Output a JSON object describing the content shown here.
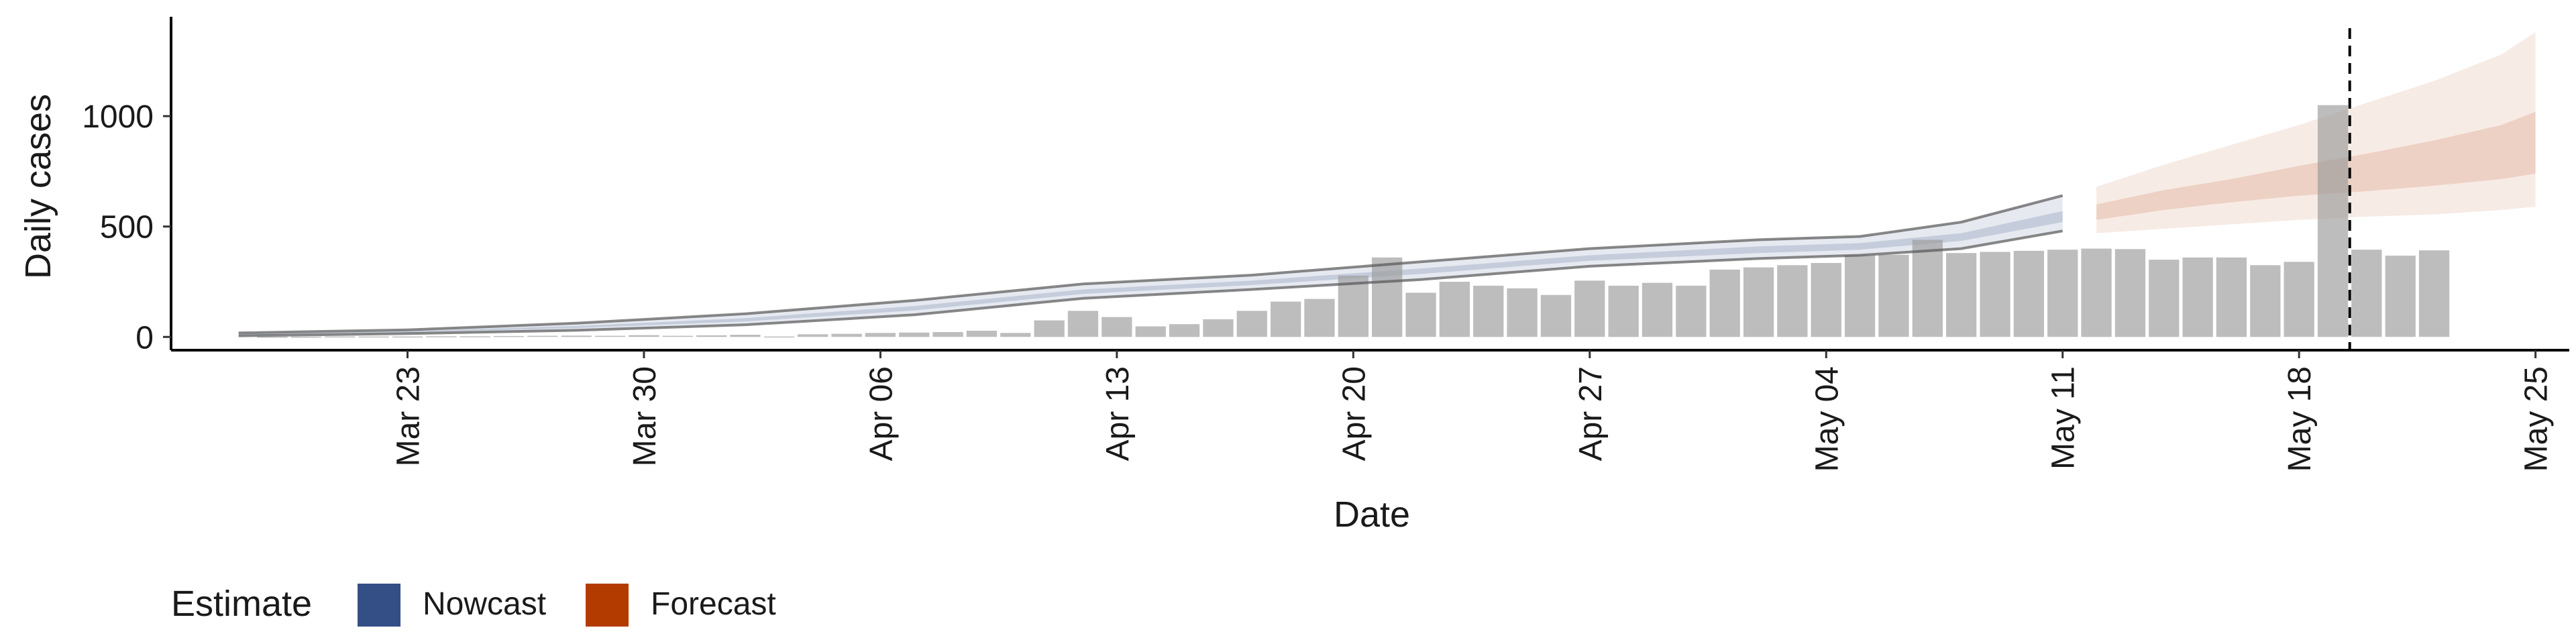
{
  "chart_data": {
    "type": "bar",
    "xlabel": "Date",
    "ylabel": "Daily cases",
    "ylim": [
      -60,
      1450
    ],
    "yticks": [
      0,
      500,
      1000
    ],
    "xlim": [
      "2020-03-16",
      "2020-05-26"
    ],
    "xticks": [
      {
        "date": "2020-03-23",
        "label": "Mar 23"
      },
      {
        "date": "2020-03-30",
        "label": "Mar 30"
      },
      {
        "date": "2020-04-06",
        "label": "Apr 06"
      },
      {
        "date": "2020-04-13",
        "label": "Apr 13"
      },
      {
        "date": "2020-04-20",
        "label": "Apr 20"
      },
      {
        "date": "2020-04-27",
        "label": "Apr 27"
      },
      {
        "date": "2020-05-04",
        "label": "May 04"
      },
      {
        "date": "2020-05-11",
        "label": "May 11"
      },
      {
        "date": "2020-05-18",
        "label": "May 18"
      },
      {
        "date": "2020-05-25",
        "label": "May 25"
      }
    ],
    "bar_start": "2020-03-19",
    "bars": [
      1,
      1,
      2,
      2,
      2,
      3,
      3,
      4,
      5,
      6,
      5,
      8,
      5,
      7,
      10,
      2,
      12,
      14,
      18,
      20,
      22,
      28,
      18,
      75,
      118,
      90,
      48,
      58,
      80,
      118,
      160,
      172,
      278,
      360,
      200,
      250,
      232,
      220,
      190,
      255,
      232,
      245,
      232,
      305,
      315,
      325,
      335,
      370,
      372,
      440,
      380,
      385,
      390,
      395,
      400,
      398,
      350,
      360,
      360,
      325,
      340,
      1050,
      395,
      368,
      392
    ],
    "report_date": "2020-05-19",
    "legend_title": "Estimate",
    "series": [
      {
        "name": "Nowcast",
        "color": "#344e86"
      },
      {
        "name": "Forecast",
        "color": "#b33b00"
      }
    ],
    "nowcast": {
      "dates": [
        "2020-03-18",
        "2020-03-23",
        "2020-03-28",
        "2020-04-02",
        "2020-04-07",
        "2020-04-12",
        "2020-04-17",
        "2020-04-22",
        "2020-04-27",
        "2020-05-02",
        "2020-05-05",
        "2020-05-08",
        "2020-05-11"
      ],
      "lower90": [
        5,
        15,
        30,
        55,
        100,
        175,
        215,
        260,
        320,
        355,
        370,
        400,
        480
      ],
      "lower50": [
        8,
        20,
        40,
        70,
        120,
        195,
        235,
        285,
        345,
        380,
        395,
        435,
        520
      ],
      "upper50": [
        12,
        26,
        50,
        85,
        140,
        215,
        255,
        310,
        370,
        410,
        425,
        470,
        570
      ],
      "upper90": [
        18,
        32,
        62,
        105,
        165,
        240,
        280,
        340,
        400,
        440,
        455,
        520,
        640
      ]
    },
    "forecast": {
      "dates": [
        "2020-05-12",
        "2020-05-14",
        "2020-05-16",
        "2020-05-18",
        "2020-05-20",
        "2020-05-22",
        "2020-05-24",
        "2020-05-25"
      ],
      "lower90": [
        470,
        490,
        510,
        530,
        545,
        555,
        575,
        590
      ],
      "lower50": [
        530,
        575,
        610,
        640,
        660,
        685,
        715,
        740
      ],
      "upper50": [
        600,
        665,
        715,
        775,
        830,
        890,
        960,
        1020
      ],
      "upper90": [
        680,
        780,
        870,
        960,
        1060,
        1160,
        1280,
        1380
      ]
    }
  }
}
